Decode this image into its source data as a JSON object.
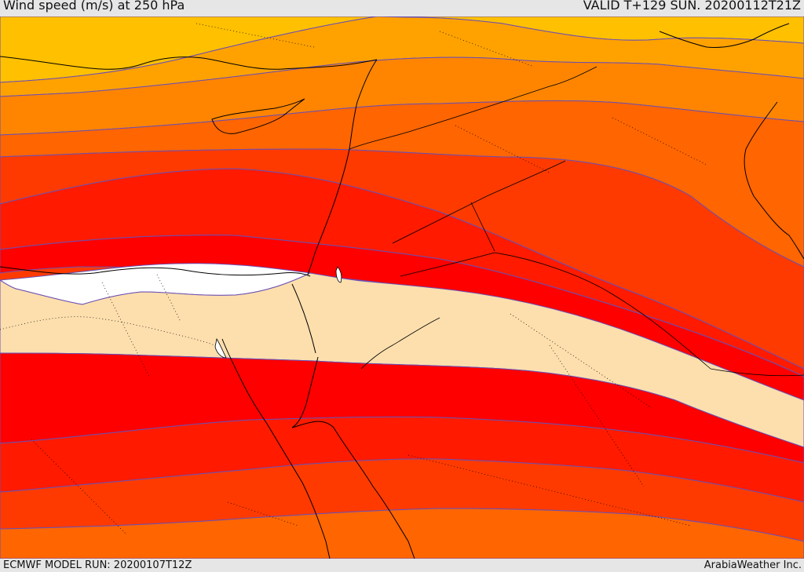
{
  "header": {
    "title": "Wind speed (m/s) at 250 hPa",
    "valid": "VALID T+129 SUN. 20200112T21Z"
  },
  "footer": {
    "model_run": "ECMWF MODEL RUN: 20200107T12Z",
    "credit": "ArabiaWeather Inc."
  },
  "map": {
    "field": "wind speed",
    "level": "250 hPa",
    "colors": {
      "yellow": "#ffc000",
      "amber": "#ffa200",
      "light_orange": "#ff8500",
      "orange": "#ff6500",
      "red_orange": "#ff3a00",
      "bright_red": "#ff1a00",
      "red": "#ff0000",
      "beige": "#fddfad",
      "white": "#ffffff",
      "contour": "#6b4fb3",
      "coast": "#000000"
    }
  }
}
